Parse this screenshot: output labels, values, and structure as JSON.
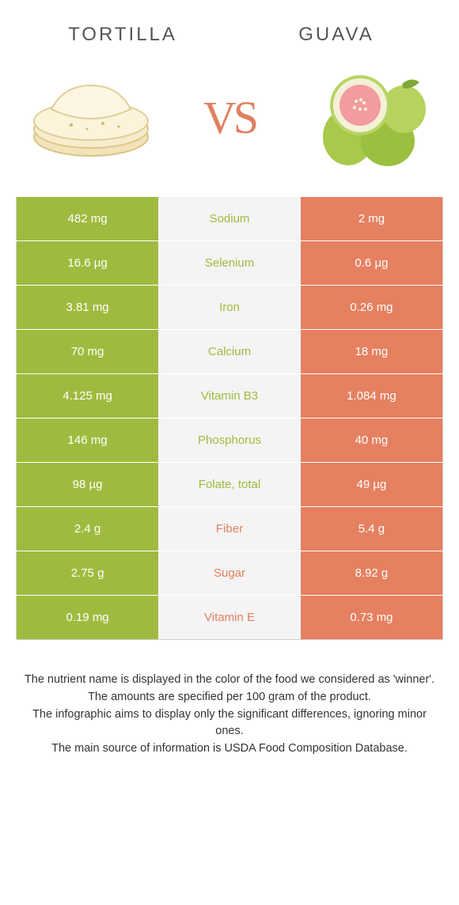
{
  "header": {
    "left_title": "TORTILLA",
    "right_title": "GUAVA",
    "vs_text": "VS"
  },
  "colors": {
    "left": "#9fbb3f",
    "right": "#e58060",
    "mid_bg": "#f4f4f4",
    "left_label": "#9fbb3f",
    "right_label": "#e58060"
  },
  "rows": [
    {
      "left": "482 mg",
      "label": "Sodium",
      "right": "2 mg",
      "winner": "left"
    },
    {
      "left": "16.6 µg",
      "label": "Selenium",
      "right": "0.6 µg",
      "winner": "left"
    },
    {
      "left": "3.81 mg",
      "label": "Iron",
      "right": "0.26 mg",
      "winner": "left"
    },
    {
      "left": "70 mg",
      "label": "Calcium",
      "right": "18 mg",
      "winner": "left"
    },
    {
      "left": "4.125 mg",
      "label": "Vitamin B3",
      "right": "1.084 mg",
      "winner": "left"
    },
    {
      "left": "146 mg",
      "label": "Phosphorus",
      "right": "40 mg",
      "winner": "left"
    },
    {
      "left": "98 µg",
      "label": "Folate, total",
      "right": "49 µg",
      "winner": "left"
    },
    {
      "left": "2.4 g",
      "label": "Fiber",
      "right": "5.4 g",
      "winner": "right"
    },
    {
      "left": "2.75 g",
      "label": "Sugar",
      "right": "8.92 g",
      "winner": "right"
    },
    {
      "left": "0.19 mg",
      "label": "Vitamin E",
      "right": "0.73 mg",
      "winner": "right"
    }
  ],
  "footer": {
    "line1": "The nutrient name is displayed in the color of the food we considered as 'winner'.",
    "line2": "The amounts are specified per 100 gram of the product.",
    "line3": "The infographic aims to display only the significant differences, ignoring minor ones.",
    "line4": "The main source of information is USDA Food Composition Database."
  }
}
